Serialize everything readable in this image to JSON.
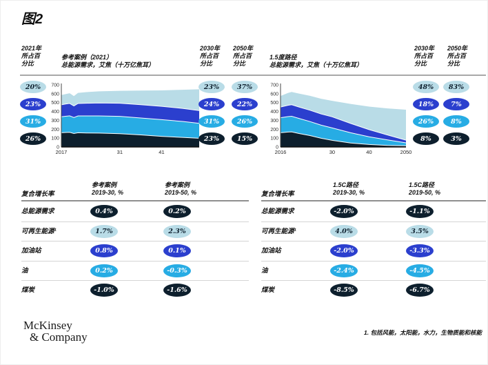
{
  "title": "图2",
  "colors": {
    "pale": "#b9dce7",
    "royal": "#2b3fce",
    "cyan": "#27ace4",
    "navy": "#0d1f2d",
    "ink": "#111111",
    "header_rule": "#a8a8a8",
    "row_line": "#d4d4d4"
  },
  "header": {
    "col_2021": "2021年\n所占百\n分比",
    "left_col_2030": "2030年\n所占百\n分比",
    "left_col_2050": "2050年\n所占百\n分比",
    "right_col_2030": "2030年\n所占百\n分比",
    "right_col_2050": "2050年\n所占百\n分比"
  },
  "shares": {
    "left_2021": [
      {
        "label": "20%",
        "tone": "pale"
      },
      {
        "label": "23%",
        "tone": "royal"
      },
      {
        "label": "31%",
        "tone": "cyan"
      },
      {
        "label": "26%",
        "tone": "navy"
      }
    ],
    "left_2030": [
      {
        "label": "23%",
        "tone": "pale"
      },
      {
        "label": "24%",
        "tone": "royal"
      },
      {
        "label": "31%",
        "tone": "cyan"
      },
      {
        "label": "23%",
        "tone": "navy"
      }
    ],
    "left_2050": [
      {
        "label": "37%",
        "tone": "pale"
      },
      {
        "label": "22%",
        "tone": "royal"
      },
      {
        "label": "26%",
        "tone": "cyan"
      },
      {
        "label": "15%",
        "tone": "navy"
      }
    ],
    "right_2030": [
      {
        "label": "48%",
        "tone": "pale"
      },
      {
        "label": "18%",
        "tone": "royal"
      },
      {
        "label": "26%",
        "tone": "cyan"
      },
      {
        "label": "8%",
        "tone": "navy"
      }
    ],
    "right_2050": [
      {
        "label": "83%",
        "tone": "pale"
      },
      {
        "label": "7%",
        "tone": "royal"
      },
      {
        "label": "8%",
        "tone": "cyan"
      },
      {
        "label": "3%",
        "tone": "navy"
      }
    ]
  },
  "chart_data": [
    {
      "type": "area",
      "title": "参考案例（2021）",
      "subtitle": "总能源需求，艾焦（十万亿焦耳）",
      "x": [
        2017,
        2018,
        2019,
        2020,
        2021,
        2023,
        2026,
        2031,
        2036,
        2041,
        2046,
        2050
      ],
      "series": [
        {
          "name": "煤炭",
          "tone": "navy",
          "values": [
            160,
            163,
            165,
            152,
            160,
            158,
            156,
            150,
            136,
            120,
            108,
            98
          ]
        },
        {
          "name": "油",
          "tone": "cyan",
          "values": [
            180,
            183,
            186,
            180,
            190,
            192,
            194,
            195,
            191,
            188,
            180,
            169
          ]
        },
        {
          "name": "加油站",
          "tone": "royal",
          "values": [
            135,
            138,
            140,
            130,
            140,
            143,
            146,
            148,
            150,
            150,
            147,
            143
          ]
        },
        {
          "name": "可再生能源",
          "tone": "pale",
          "values": [
            110,
            112,
            115,
            112,
            120,
            125,
            131,
            140,
            159,
            180,
            210,
            240
          ]
        }
      ],
      "ylim": [
        0,
        700
      ],
      "yticks": [
        700,
        600,
        500,
        400,
        300,
        200,
        100,
        0
      ],
      "xticks": [
        {
          "v": 2017,
          "label": "2017"
        },
        {
          "v": 2031,
          "label": "31"
        },
        {
          "v": 2041,
          "label": "41"
        }
      ],
      "legend_position": "left",
      "grid": false
    },
    {
      "type": "area",
      "title": "1.5度路径",
      "subtitle": "总能源需求，艾焦（十万亿焦耳）",
      "x": [
        2016,
        2018,
        2019,
        2021,
        2024,
        2027,
        2030,
        2035,
        2040,
        2045,
        2050
      ],
      "series": [
        {
          "name": "煤炭",
          "tone": "navy",
          "values": [
            160,
            168,
            170,
            152,
            128,
            98,
            75,
            45,
            28,
            18,
            13
          ]
        },
        {
          "name": "油",
          "tone": "cyan",
          "values": [
            170,
            174,
            176,
            170,
            158,
            148,
            140,
            115,
            87,
            62,
            34
          ]
        },
        {
          "name": "加油站",
          "tone": "royal",
          "values": [
            120,
            128,
            130,
            128,
            128,
            126,
            125,
            105,
            80,
            55,
            30
          ]
        },
        {
          "name": "可再生能源",
          "tone": "pale",
          "values": [
            125,
            138,
            145,
            152,
            162,
            172,
            180,
            220,
            260,
            300,
            343
          ]
        }
      ],
      "ylim": [
        0,
        700
      ],
      "yticks": [
        700,
        600,
        500,
        400,
        300,
        200,
        100,
        0
      ],
      "xticks": [
        {
          "v": 2016,
          "label": "2016"
        },
        {
          "v": 2030,
          "label": "30"
        },
        {
          "v": 2040,
          "label": "40"
        },
        {
          "v": 2050,
          "label": "2050"
        }
      ],
      "legend_position": "none",
      "grid": false
    }
  ],
  "tables": [
    {
      "row_header": "复合增长率",
      "col1": "参考案例\n2019-30, %",
      "col2": "参考案例\n2019-50, %",
      "rows": [
        {
          "label": "总能源需求",
          "tone": "navy",
          "v1": "0.4%",
          "v2": "0.2%"
        },
        {
          "label": "可再生能源¹",
          "tone": "pale",
          "v1": "1.7%",
          "v2": "2.3%"
        },
        {
          "label": "加油站",
          "tone": "royal",
          "v1": "0.8%",
          "v2": "0.1%"
        },
        {
          "label": "油",
          "tone": "cyan",
          "v1": "0.2%",
          "v2": "-0.3%"
        },
        {
          "label": "煤炭",
          "tone": "navy",
          "v1": "-1.0%",
          "v2": "-1.6%"
        }
      ]
    },
    {
      "row_header": "复合增长率",
      "col1": "1.5C路径\n2019-30, %",
      "col2": "1.5C路径\n2019-50, %",
      "rows": [
        {
          "label": "总能源需求",
          "tone": "navy",
          "v1": "-2.0%",
          "v2": "-1.1%"
        },
        {
          "label": "可再生能源¹",
          "tone": "pale",
          "v1": "4.0%",
          "v2": "3.5%"
        },
        {
          "label": "加油站",
          "tone": "royal",
          "v1": "-2.0%",
          "v2": "-3.3%"
        },
        {
          "label": "油",
          "tone": "cyan",
          "v1": "-2.4%",
          "v2": "-4.5%"
        },
        {
          "label": "煤炭",
          "tone": "navy",
          "v1": "-8.5%",
          "v2": "-6.7%"
        }
      ]
    }
  ],
  "footer": {
    "logo_line1": "McKinsey",
    "logo_line2": "& Company",
    "footnote": "1. 包括风能，太阳能，水力，生物质能和核能"
  }
}
